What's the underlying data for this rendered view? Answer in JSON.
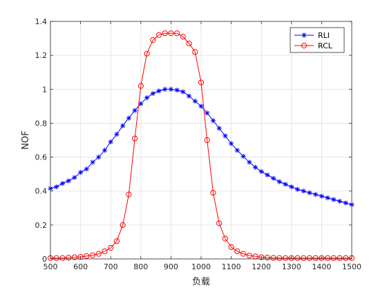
{
  "chart_data": {
    "type": "line",
    "xlabel": "负载",
    "ylabel": "NOF",
    "xlim": [
      500,
      1500
    ],
    "ylim": [
      0,
      1.4
    ],
    "xticks": [
      500,
      600,
      700,
      800,
      900,
      1000,
      1100,
      1200,
      1300,
      1400,
      1500
    ],
    "yticks": [
      0,
      0.2,
      0.4,
      0.6,
      0.8,
      1,
      1.2,
      1.4
    ],
    "xtick_labels": [
      "500",
      "600",
      "700",
      "800",
      "900",
      "1000",
      "1100",
      "1200",
      "1300",
      "1400",
      "1500"
    ],
    "ytick_labels": [
      "0",
      "0.2",
      "0.4",
      "0.6",
      "0.8",
      "1",
      "1.2",
      "1.4"
    ],
    "grid": true,
    "legend_position": "top-right",
    "x": [
      500,
      520,
      540,
      560,
      580,
      600,
      620,
      640,
      660,
      680,
      700,
      720,
      740,
      760,
      780,
      800,
      820,
      840,
      860,
      880,
      900,
      920,
      940,
      960,
      980,
      1000,
      1020,
      1040,
      1060,
      1080,
      1100,
      1120,
      1140,
      1160,
      1180,
      1200,
      1220,
      1240,
      1260,
      1280,
      1300,
      1320,
      1340,
      1360,
      1380,
      1400,
      1420,
      1440,
      1460,
      1480,
      1500
    ],
    "series": [
      {
        "name": "RLI",
        "color": "#0000ff",
        "marker": "asterisk",
        "values": [
          0.415,
          0.425,
          0.445,
          0.46,
          0.48,
          0.51,
          0.53,
          0.57,
          0.6,
          0.64,
          0.69,
          0.735,
          0.785,
          0.83,
          0.875,
          0.915,
          0.95,
          0.975,
          0.99,
          1.0,
          1.0,
          0.995,
          0.985,
          0.96,
          0.93,
          0.9,
          0.86,
          0.815,
          0.77,
          0.725,
          0.68,
          0.64,
          0.605,
          0.57,
          0.54,
          0.515,
          0.495,
          0.475,
          0.455,
          0.44,
          0.425,
          0.41,
          0.4,
          0.39,
          0.38,
          0.37,
          0.36,
          0.35,
          0.34,
          0.33,
          0.32
        ]
      },
      {
        "name": "RCL",
        "color": "#ff0000",
        "marker": "circle",
        "values": [
          0.005,
          0.005,
          0.005,
          0.007,
          0.01,
          0.012,
          0.017,
          0.022,
          0.03,
          0.045,
          0.065,
          0.105,
          0.2,
          0.38,
          0.71,
          1.02,
          1.21,
          1.29,
          1.32,
          1.33,
          1.33,
          1.33,
          1.31,
          1.27,
          1.22,
          1.04,
          0.7,
          0.39,
          0.21,
          0.12,
          0.07,
          0.045,
          0.03,
          0.02,
          0.015,
          0.01,
          0.008,
          0.006,
          0.005,
          0.005,
          0.005,
          0.005,
          0.005,
          0.005,
          0.005,
          0.005,
          0.005,
          0.005,
          0.005,
          0.005,
          0.005
        ]
      }
    ]
  }
}
